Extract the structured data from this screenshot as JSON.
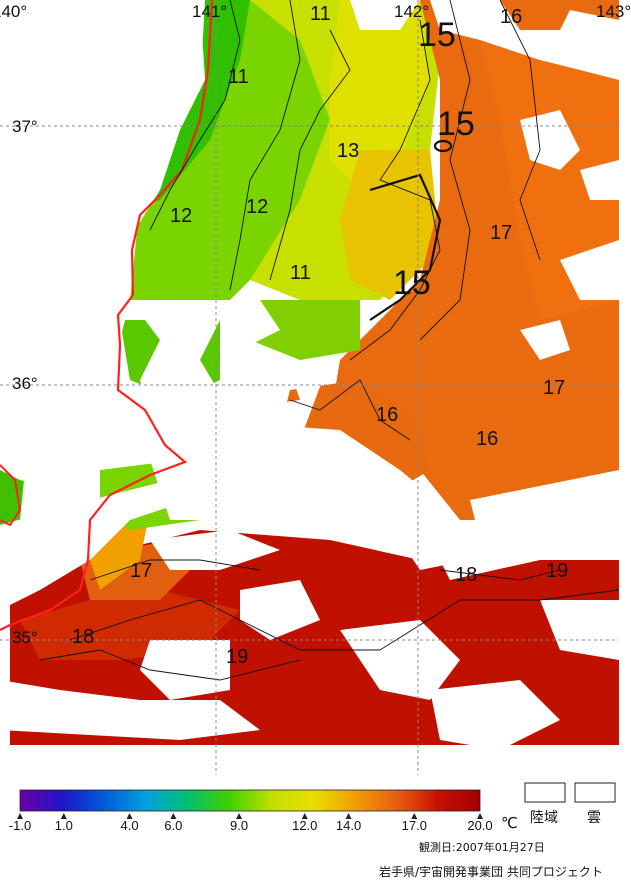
{
  "map": {
    "lon_labels": [
      {
        "text": "140°",
        "lon": 140
      },
      {
        "text": "141°",
        "lon": 141
      },
      {
        "text": "142°",
        "lon": 142
      },
      {
        "text": "143°",
        "lon": 143
      }
    ],
    "lat_labels": [
      {
        "text": "37°",
        "lat": 37
      },
      {
        "text": "36°",
        "lat": 36
      },
      {
        "text": "35°",
        "lat": 35
      }
    ],
    "contour_labels": [
      "11",
      "11",
      "13",
      "12",
      "12",
      "11",
      "15",
      "15",
      "15",
      "16",
      "17",
      "17",
      "16",
      "16",
      "17",
      "18",
      "18",
      "19",
      "19"
    ],
    "land_outline_color": "#ff2020",
    "grid_color": "#888888"
  },
  "legend": {
    "ticks": [
      "-1.0",
      "1.0",
      "4.0",
      "6.0",
      "9.0",
      "12.0",
      "14.0",
      "17.0",
      "20.0"
    ],
    "unit": "℃",
    "stops": [
      "#6a00a8",
      "#1f14c8",
      "#005ad8",
      "#00a0e0",
      "#00c070",
      "#40d000",
      "#c0e000",
      "#e8e000",
      "#f0a000",
      "#e86010",
      "#c81000",
      "#a00000"
    ],
    "land_label": "陸域",
    "cloud_label": "雲"
  },
  "footer": {
    "observation_date": "観測日:2007年01月27日",
    "credit": "岩手県/宇宙開発事業団 共同プロジェクト"
  }
}
